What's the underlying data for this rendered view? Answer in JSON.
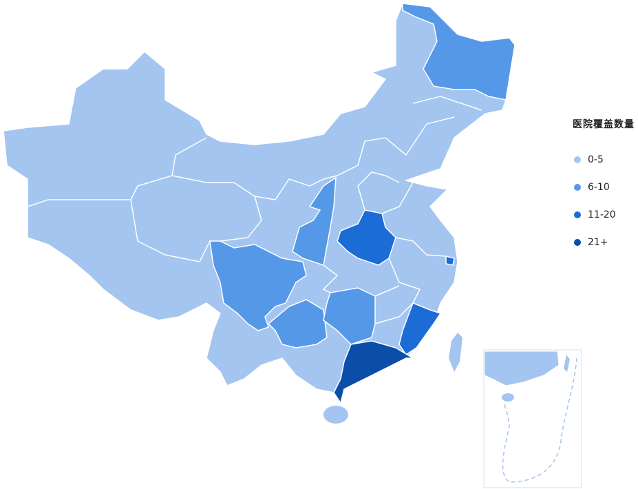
{
  "legend": {
    "title": "医院覆盖数量",
    "items": [
      {
        "label": "0-5",
        "color": "#a3c5f0"
      },
      {
        "label": "6-10",
        "color": "#5598e8"
      },
      {
        "label": "11-20",
        "color": "#1c6cd6"
      },
      {
        "label": "21+",
        "color": "#0a4ea8"
      }
    ]
  },
  "regions": [
    {
      "level": 1
    },
    {
      "level": 1
    },
    {
      "level": 1
    },
    {
      "level": 1
    },
    {
      "level": 1
    },
    {
      "level": 2
    },
    {
      "level": 2
    },
    {
      "level": 2
    },
    {
      "level": 3
    }
  ],
  "border_color": "#ffffff",
  "inset_border_color": "#cfe0f7"
}
